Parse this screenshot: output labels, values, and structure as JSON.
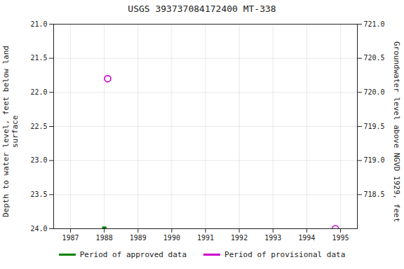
{
  "chart_data": {
    "type": "scatter",
    "title": "USGS 393737084172400 MT-338",
    "ylabel": "Depth to water level, feet below land\nsurface",
    "y2label": "Groundwater level above NGVD 1929, feet",
    "xlim": [
      1986.5,
      1995.5
    ],
    "xticks": [
      1987,
      1988,
      1989,
      1990,
      1991,
      1992,
      1993,
      1994,
      1995
    ],
    "ylim": [
      24.0,
      21.0
    ],
    "yticks": [
      {
        "value": 21.0,
        "label": "21.0"
      },
      21.5,
      {
        "value": 22.0,
        "label": "22.0"
      },
      22.5,
      {
        "value": 23.0,
        "label": "23.0"
      },
      23.5,
      {
        "value": 24.0,
        "label": "24.0"
      }
    ],
    "y2lim": [
      718.0,
      721.0
    ],
    "y2ticks": [
      718.5,
      {
        "value": 719.0,
        "label": "719.0"
      },
      719.5,
      {
        "value": 720.0,
        "label": "720.0"
      },
      720.5,
      {
        "value": 721.0,
        "label": "721.0"
      }
    ],
    "grid": true,
    "legend": "bottom",
    "series": [
      {
        "name": "Period of approved data",
        "color": "#008000",
        "marker": "square",
        "x": [
          1988.0
        ],
        "values": [
          24.0
        ]
      },
      {
        "name": "Period of provisional data",
        "color": "#cc00cc",
        "marker": "circle",
        "x": [
          1988.1,
          1994.85
        ],
        "values": [
          21.8,
          24.0
        ]
      }
    ]
  }
}
